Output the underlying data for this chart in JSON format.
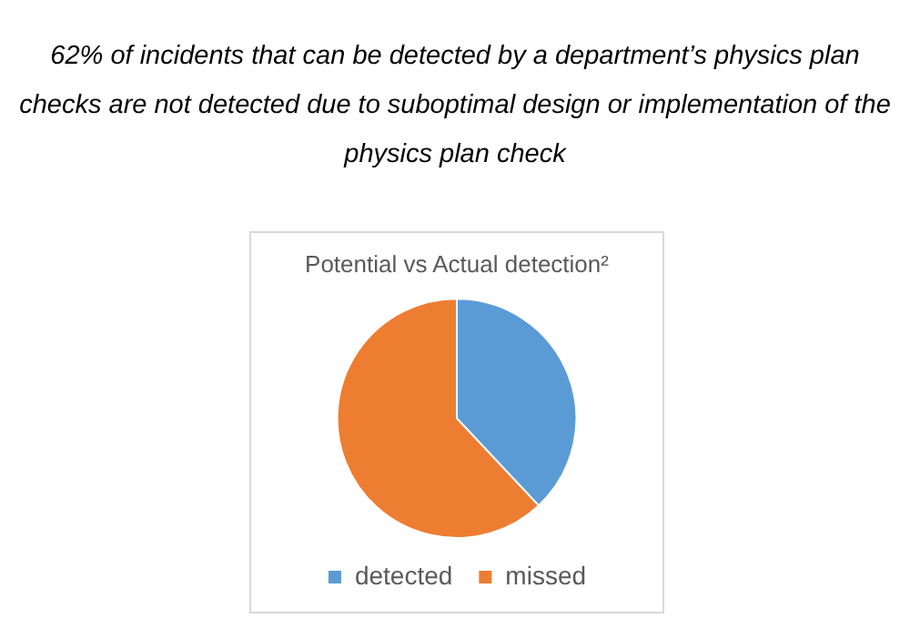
{
  "chart_data": {
    "type": "pie",
    "title": "62% of incidents that can be detected by a department’s physics plan checks are not detected due to suboptimal design or implementation of the physics plan check",
    "subtitle": "Potential vs Actual detection²",
    "categories": [
      "detected",
      "missed"
    ],
    "values": [
      38,
      62
    ],
    "colors": [
      "#5b9bd5",
      "#ed7d31"
    ],
    "legend": "bottom"
  }
}
